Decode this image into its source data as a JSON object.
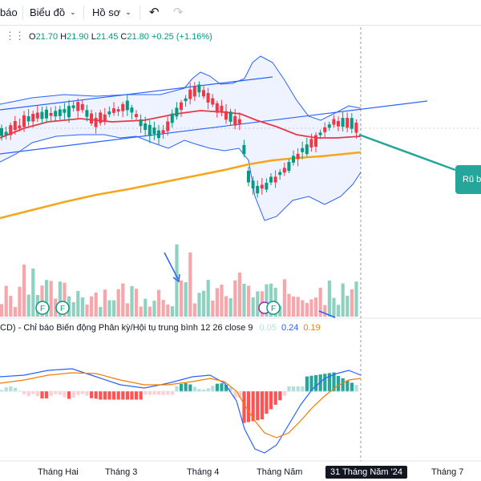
{
  "toolbar": {
    "cut_label": "báo",
    "chart_label": "Biểu đồ",
    "profile_label": "Hồ sơ"
  },
  "ohlc": {
    "open_label": "O",
    "open": "21.70",
    "high_label": "H",
    "high": "21.90",
    "low_label": "L",
    "low": "21.45",
    "close_label": "C",
    "close": "21.80",
    "change": "+0.25 (+1.16%)"
  },
  "macd": {
    "title": "CD) - Chỉ báo Biến động Phân kỳ/Hội tụ trung bình 12 26 close 9",
    "v1": "0.05",
    "v2": "0.24",
    "v3": "0.19"
  },
  "annotation": {
    "label": "Rũ b"
  },
  "events": {
    "f1": "F",
    "f2": "F",
    "f3": "F"
  },
  "xaxis": {
    "labels": [
      "Tháng Hai",
      "Tháng 3",
      "Tháng 4",
      "Tháng Năm",
      "Tháng 7"
    ],
    "active": "31 Tháng Năm '24"
  },
  "colors": {
    "up": "#089981",
    "down": "#f23645",
    "upVol": "#8fd1c0",
    "downVol": "#f7a6ac",
    "bb": "#2962ff",
    "ma": "#f23645",
    "ma200": "#f7a51c",
    "channel": "#2962ff"
  }
}
